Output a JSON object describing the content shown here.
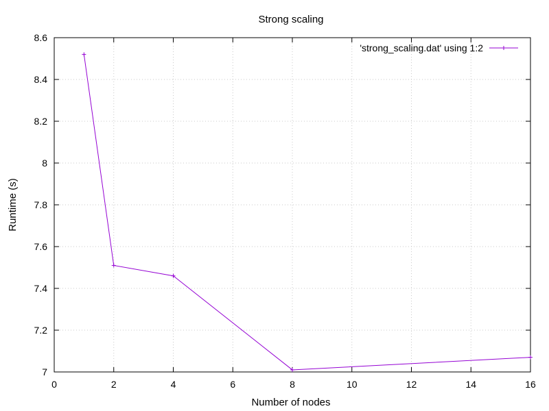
{
  "chart_data": {
    "type": "line",
    "title": "Strong scaling",
    "xlabel": "Number of nodes",
    "ylabel": "Runtime (s)",
    "xlim": [
      0,
      16
    ],
    "ylim": [
      7,
      8.6
    ],
    "x_ticks": [
      "0",
      "2",
      "4",
      "6",
      "8",
      "10",
      "12",
      "14",
      "16"
    ],
    "y_ticks": [
      "7",
      "7.2",
      "7.4",
      "7.6",
      "7.8",
      "8",
      "8.2",
      "8.4",
      "8.6"
    ],
    "grid": true,
    "legend_position": "top-right",
    "series": [
      {
        "name": "'strong_scaling.dat' using 1:2",
        "color": "#9400d3",
        "marker": "plus",
        "x": [
          1,
          2,
          4,
          8,
          16
        ],
        "y": [
          8.52,
          7.51,
          7.46,
          7.01,
          7.07
        ]
      }
    ]
  }
}
